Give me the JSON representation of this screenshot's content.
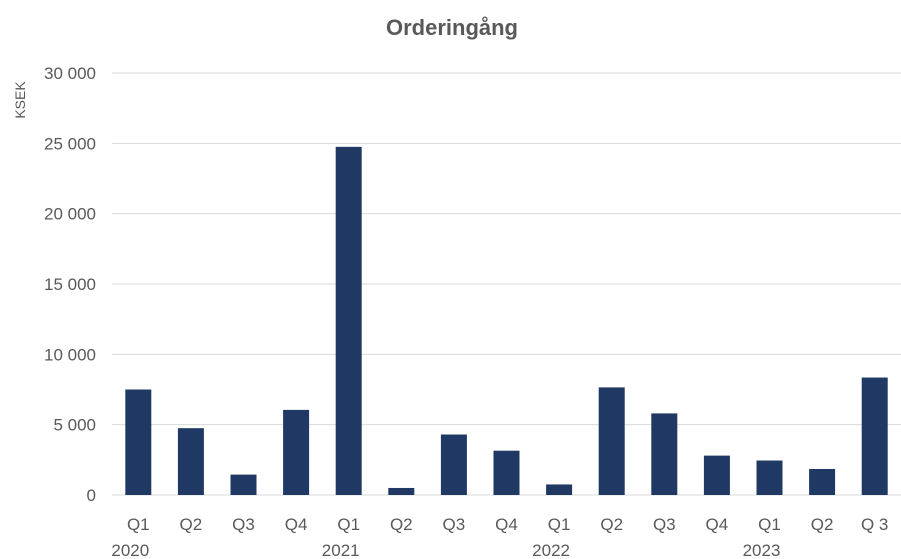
{
  "chart_data": {
    "type": "bar",
    "title": "Orderingång",
    "ylabel": "KSEK",
    "xlabel": "",
    "ylim": [
      0,
      30000
    ],
    "yticks": [
      0,
      5000,
      10000,
      15000,
      20000,
      25000,
      30000
    ],
    "ytick_labels": [
      "0",
      "5 000",
      "10 000",
      "15 000",
      "20 000",
      "25 000",
      "30 000"
    ],
    "grid": true,
    "legend": "none",
    "color": "#1f3864",
    "categories": [
      "Q1",
      "Q2",
      "Q3",
      "Q4",
      "Q1",
      "Q2",
      "Q3",
      "Q4",
      "Q1",
      "Q2",
      "Q3",
      "Q4",
      "Q1",
      "Q2",
      "Q 3"
    ],
    "year_labels": [
      {
        "label": "2020",
        "start": 0,
        "end": 3
      },
      {
        "label": "2021",
        "start": 4,
        "end": 7
      },
      {
        "label": "2022",
        "start": 8,
        "end": 11
      },
      {
        "label": "2023",
        "start": 12,
        "end": 14
      }
    ],
    "values": [
      7500,
      4750,
      1450,
      6050,
      24750,
      500,
      4300,
      3150,
      750,
      7650,
      5800,
      2800,
      2450,
      1850,
      8350
    ]
  }
}
